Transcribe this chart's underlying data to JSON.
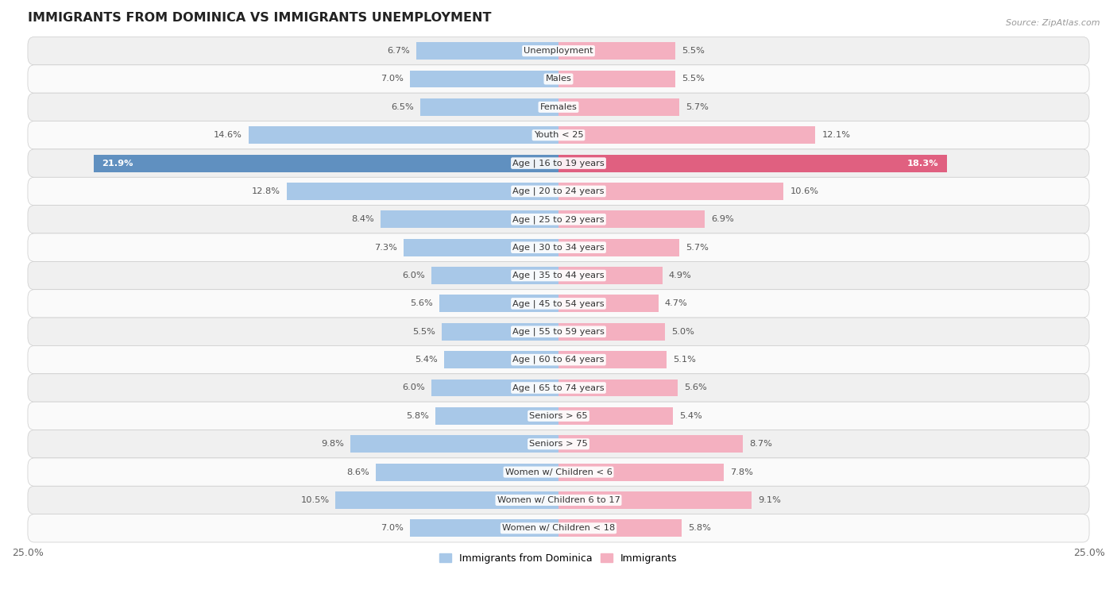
{
  "title": "IMMIGRANTS FROM DOMINICA VS IMMIGRANTS UNEMPLOYMENT",
  "source": "Source: ZipAtlas.com",
  "categories": [
    "Unemployment",
    "Males",
    "Females",
    "Youth < 25",
    "Age | 16 to 19 years",
    "Age | 20 to 24 years",
    "Age | 25 to 29 years",
    "Age | 30 to 34 years",
    "Age | 35 to 44 years",
    "Age | 45 to 54 years",
    "Age | 55 to 59 years",
    "Age | 60 to 64 years",
    "Age | 65 to 74 years",
    "Seniors > 65",
    "Seniors > 75",
    "Women w/ Children < 6",
    "Women w/ Children 6 to 17",
    "Women w/ Children < 18"
  ],
  "left_values": [
    6.7,
    7.0,
    6.5,
    14.6,
    21.9,
    12.8,
    8.4,
    7.3,
    6.0,
    5.6,
    5.5,
    5.4,
    6.0,
    5.8,
    9.8,
    8.6,
    10.5,
    7.0
  ],
  "right_values": [
    5.5,
    5.5,
    5.7,
    12.1,
    18.3,
    10.6,
    6.9,
    5.7,
    4.9,
    4.7,
    5.0,
    5.1,
    5.6,
    5.4,
    8.7,
    7.8,
    9.1,
    5.8
  ],
  "left_color": "#a8c8e8",
  "right_color": "#f4b0c0",
  "highlight_left_color": "#6090c0",
  "highlight_right_color": "#e06080",
  "bg_color_odd": "#f0f0f0",
  "bg_color_even": "#fafafa",
  "xlim": 25.0,
  "legend_left": "Immigrants from Dominica",
  "legend_right": "Immigrants",
  "bar_height": 0.62,
  "highlight_row": 4
}
